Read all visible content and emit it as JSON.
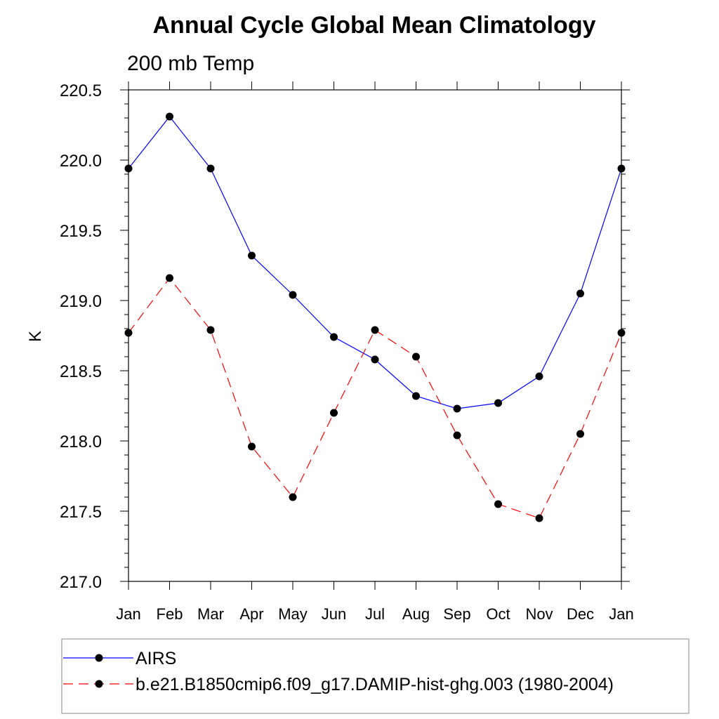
{
  "chart_data": {
    "type": "line",
    "title": "Annual Cycle Global Mean Climatology",
    "subtitle": "200 mb Temp",
    "xlabel": "",
    "ylabel": "K",
    "categories": [
      "Jan",
      "Feb",
      "Mar",
      "Apr",
      "May",
      "Jun",
      "Jul",
      "Aug",
      "Sep",
      "Oct",
      "Nov",
      "Dec",
      "Jan"
    ],
    "ylim": [
      217.0,
      220.5
    ],
    "yticks": [
      "217.0",
      "217.5",
      "218.0",
      "218.5",
      "219.0",
      "219.5",
      "220.0",
      "220.5"
    ],
    "grid": false,
    "legend_position": "bottom",
    "series": [
      {
        "name": "AIRS",
        "color": "#0000ff",
        "dash": "solid",
        "values": [
          219.94,
          220.31,
          219.94,
          219.32,
          219.04,
          218.74,
          218.58,
          218.32,
          218.23,
          218.27,
          218.46,
          219.05,
          219.94
        ]
      },
      {
        "name": "b.e21.B1850cmip6.f09_g17.DAMIP-hist-ghg.003 (1980-2004)",
        "color": "#ff0000",
        "dash": "dashed",
        "values": [
          218.77,
          219.16,
          218.79,
          217.96,
          217.6,
          218.2,
          218.79,
          218.6,
          218.04,
          217.55,
          217.45,
          218.05,
          218.77
        ]
      }
    ]
  }
}
